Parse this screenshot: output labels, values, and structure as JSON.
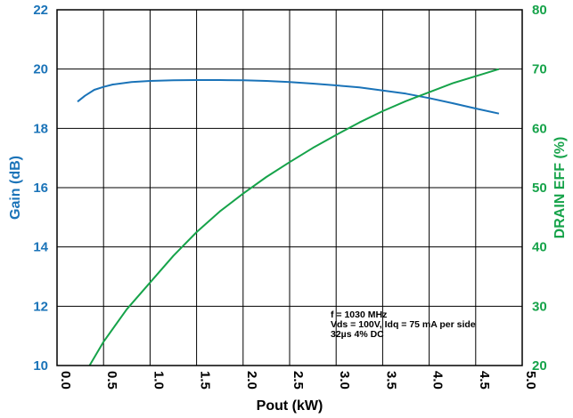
{
  "chart_data": {
    "type": "line",
    "xlabel": "Pout (kW)",
    "ylabel": "Gain (dB)",
    "y2label": "DRAIN EFF (%)",
    "xlim": [
      0.0,
      5.0
    ],
    "ylim": [
      10,
      22
    ],
    "y2lim": [
      20,
      80
    ],
    "x_ticks": [
      "0.0",
      "0.5",
      "1.0",
      "1.5",
      "2.0",
      "2.5",
      "3.0",
      "3.5",
      "4.0",
      "4.5",
      "5.0"
    ],
    "y_ticks": [
      "10",
      "12",
      "14",
      "16",
      "18",
      "20",
      "22"
    ],
    "y2_ticks": [
      "20",
      "30",
      "40",
      "50",
      "60",
      "70",
      "80"
    ],
    "grid": true,
    "colors": {
      "gain": "#1a73b8",
      "eff": "#16a34a",
      "grid": "#000000"
    },
    "annotation": [
      "f = 1030 MHz",
      "Vds = 100V, Idq = 75 mA per side",
      "32µs 4% DC"
    ],
    "series": [
      {
        "axis": "left",
        "x": [
          0.22,
          0.3,
          0.4,
          0.5,
          0.6,
          0.8,
          1.0,
          1.25,
          1.5,
          1.75,
          2.0,
          2.25,
          2.5,
          2.75,
          3.0,
          3.25,
          3.5,
          3.75,
          4.0,
          4.25,
          4.5,
          4.75
        ],
        "y": [
          18.9,
          19.1,
          19.3,
          19.4,
          19.48,
          19.56,
          19.6,
          19.62,
          19.63,
          19.63,
          19.62,
          19.6,
          19.56,
          19.51,
          19.45,
          19.38,
          19.28,
          19.17,
          19.02,
          18.85,
          18.67,
          18.5
        ]
      },
      {
        "axis": "right",
        "x": [
          0.35,
          0.5,
          0.75,
          1.0,
          1.25,
          1.5,
          1.75,
          2.0,
          2.25,
          2.5,
          2.75,
          3.0,
          3.25,
          3.5,
          3.75,
          4.0,
          4.25,
          4.5,
          4.75
        ],
        "y": [
          20.0,
          24.0,
          29.5,
          34.0,
          38.5,
          42.5,
          46.0,
          49.0,
          51.8,
          54.3,
          56.7,
          58.9,
          61.0,
          62.9,
          64.6,
          66.1,
          67.6,
          68.8,
          70.0
        ]
      }
    ]
  }
}
